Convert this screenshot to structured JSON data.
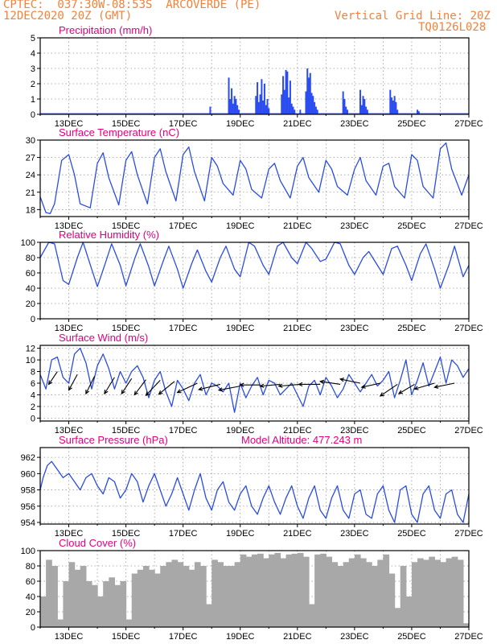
{
  "header": {
    "line1": "CPTEC:  037:30W-08:53S  ARCOVERDE (PE)",
    "line2": "12DEC2020 20Z (GMT)",
    "grid_note": "Vertical Grid Line: 20Z",
    "code": "TQ0126L028"
  },
  "colors": {
    "header": "#f0823c",
    "panel_title": "#e0007e",
    "series_line": "#2a4ce0",
    "bar_blue": "#2a4cf0",
    "cloud_gray": "#a8a8a8",
    "arrow": "#000000",
    "grid": "#999999"
  },
  "x_axis": {
    "range": [
      0,
      15
    ],
    "ticks": [
      {
        "x": 1,
        "label": "13DEC"
      },
      {
        "x": 3,
        "label": "15DEC"
      },
      {
        "x": 5,
        "label": "17DEC"
      },
      {
        "x": 7,
        "label": "19DEC"
      },
      {
        "x": 9,
        "label": "21DEC"
      },
      {
        "x": 11,
        "label": "23DEC"
      },
      {
        "x": 13,
        "label": "25DEC"
      },
      {
        "x": 15,
        "label": "27DEC"
      }
    ]
  },
  "chart_data": [
    {
      "type": "bar",
      "title": "Precipitation (mm/h)",
      "ylim": [
        0,
        5
      ],
      "yticks": [
        0,
        1,
        2,
        3,
        4,
        5
      ],
      "grid": true,
      "x": [
        5.95,
        6.6,
        6.65,
        6.7,
        6.75,
        6.8,
        6.85,
        6.9,
        6.95,
        7.55,
        7.6,
        7.65,
        7.7,
        7.75,
        7.8,
        7.85,
        7.9,
        7.95,
        8.0,
        8.45,
        8.5,
        8.55,
        8.6,
        8.65,
        8.7,
        8.75,
        8.8,
        8.85,
        8.9,
        9.1,
        9.3,
        9.35,
        9.4,
        9.45,
        9.5,
        9.55,
        9.6,
        9.65,
        9.7,
        10.6,
        10.65,
        10.7,
        10.75,
        11.2,
        11.25,
        11.3,
        11.35,
        11.4,
        11.45,
        12.25,
        12.3,
        12.35,
        12.4,
        12.45,
        12.5,
        13.2,
        13.25
      ],
      "values": [
        0.5,
        2.4,
        1.0,
        1.7,
        0.7,
        1.2,
        1.0,
        0.6,
        0.3,
        1.2,
        2.1,
        0.8,
        1.3,
        2.3,
        0.9,
        2.0,
        0.6,
        1.0,
        0.4,
        1.3,
        2.5,
        1.6,
        2.9,
        2.8,
        1.1,
        2.2,
        0.7,
        0.5,
        0.3,
        0.3,
        1.5,
        3.0,
        2.4,
        2.7,
        1.4,
        1.2,
        0.8,
        0.5,
        0.3,
        1.5,
        1.0,
        0.5,
        0.3,
        1.6,
        0.6,
        1.2,
        1.0,
        0.5,
        0.3,
        1.6,
        1.1,
        0.9,
        1.2,
        0.8,
        0.3,
        0.3,
        0.2
      ]
    },
    {
      "type": "line",
      "title": "Surface Temperature (nC)",
      "ylim": [
        16.8,
        30
      ],
      "yticks": [
        18,
        21,
        24,
        27,
        30
      ],
      "grid": true,
      "x": [
        0,
        0.2,
        0.35,
        0.5,
        0.75,
        1.0,
        1.2,
        1.4,
        1.75,
        2.0,
        2.2,
        2.4,
        2.75,
        3.0,
        3.2,
        3.4,
        3.75,
        4.0,
        4.2,
        4.4,
        4.75,
        5.0,
        5.2,
        5.4,
        5.75,
        6.0,
        6.2,
        6.4,
        6.75,
        7.0,
        7.2,
        7.4,
        7.75,
        8.0,
        8.2,
        8.4,
        8.75,
        9.0,
        9.2,
        9.4,
        9.75,
        10.0,
        10.2,
        10.4,
        10.75,
        11.0,
        11.2,
        11.4,
        11.75,
        12.0,
        12.2,
        12.4,
        12.75,
        13.0,
        13.2,
        13.4,
        13.75,
        14.0,
        14.2,
        14.4,
        14.75,
        15.0
      ],
      "values": [
        20.2,
        17.5,
        17.3,
        19.0,
        26.5,
        27.5,
        24.0,
        19.0,
        18.3,
        26.0,
        27.8,
        23.5,
        18.8,
        26.5,
        28.0,
        24.0,
        19.0,
        27.0,
        28.5,
        24.5,
        19.5,
        27.5,
        28.8,
        24.5,
        19.5,
        27.0,
        25.5,
        22.5,
        20.5,
        26.5,
        25.0,
        21.5,
        20.0,
        25.0,
        26.0,
        23.0,
        20.0,
        25.5,
        27.0,
        23.5,
        21.0,
        26.5,
        25.0,
        22.0,
        20.5,
        25.0,
        27.0,
        23.0,
        20.5,
        25.5,
        26.0,
        22.0,
        20.0,
        27.5,
        26.5,
        22.0,
        20.0,
        28.5,
        29.5,
        25.0,
        20.5,
        24.0
      ]
    },
    {
      "type": "line",
      "title": "Relative Humidity (%)",
      "ylim": [
        0,
        100
      ],
      "yticks": [
        0,
        20,
        40,
        60,
        80,
        100
      ],
      "grid": true,
      "x": [
        0,
        0.3,
        0.5,
        0.8,
        1.0,
        1.3,
        1.5,
        1.8,
        2.0,
        2.3,
        2.5,
        2.8,
        3.0,
        3.3,
        3.5,
        3.8,
        4.0,
        4.3,
        4.5,
        4.8,
        5.0,
        5.3,
        5.5,
        5.8,
        6.0,
        6.3,
        6.5,
        6.8,
        7.0,
        7.3,
        7.5,
        7.8,
        8.0,
        8.3,
        8.5,
        8.8,
        9.0,
        9.3,
        9.5,
        9.8,
        10.0,
        10.3,
        10.5,
        10.8,
        11.0,
        11.3,
        11.5,
        11.8,
        12.0,
        12.3,
        12.5,
        12.8,
        13.0,
        13.3,
        13.5,
        13.8,
        14.0,
        14.3,
        14.5,
        14.8,
        15.0
      ],
      "values": [
        80,
        100,
        98,
        50,
        45,
        80,
        100,
        65,
        42,
        75,
        98,
        70,
        43,
        78,
        98,
        68,
        43,
        75,
        95,
        65,
        40,
        72,
        90,
        62,
        48,
        80,
        95,
        65,
        55,
        100,
        95,
        70,
        58,
        95,
        100,
        80,
        72,
        100,
        92,
        75,
        78,
        100,
        98,
        70,
        58,
        80,
        88,
        70,
        58,
        92,
        95,
        70,
        50,
        85,
        98,
        65,
        40,
        70,
        95,
        55,
        70
      ]
    },
    {
      "type": "line",
      "title": "Surface Wind (m/s)",
      "ylim": [
        -0.5,
        12.5
      ],
      "yticks": [
        0,
        2,
        4,
        6,
        8,
        10,
        12
      ],
      "grid": true,
      "x": [
        0,
        0.2,
        0.4,
        0.6,
        0.8,
        1.0,
        1.2,
        1.4,
        1.6,
        1.8,
        2.0,
        2.2,
        2.4,
        2.6,
        2.8,
        3.0,
        3.2,
        3.4,
        3.6,
        3.8,
        4.0,
        4.2,
        4.4,
        4.6,
        4.8,
        5.0,
        5.2,
        5.4,
        5.6,
        5.8,
        6.0,
        6.2,
        6.4,
        6.6,
        6.8,
        7.0,
        7.2,
        7.4,
        7.6,
        7.8,
        8.0,
        8.2,
        8.4,
        8.6,
        8.8,
        9.0,
        9.2,
        9.4,
        9.6,
        9.8,
        10.0,
        10.2,
        10.4,
        10.6,
        10.8,
        11.0,
        11.2,
        11.4,
        11.6,
        11.8,
        12.0,
        12.2,
        12.4,
        12.6,
        12.8,
        13.0,
        13.2,
        13.4,
        13.6,
        13.8,
        14.0,
        14.2,
        14.4,
        14.6,
        14.8,
        15.0
      ],
      "values": [
        7.5,
        5.0,
        10.0,
        10.5,
        7.0,
        6.0,
        11.0,
        12.0,
        9.5,
        5.0,
        9.0,
        11.0,
        8.5,
        5.0,
        8.0,
        6.0,
        8.0,
        9.0,
        7.0,
        3.5,
        6.5,
        8.0,
        4.5,
        2.0,
        6.5,
        5.0,
        3.0,
        6.0,
        7.5,
        4.0,
        6.0,
        5.5,
        4.5,
        6.0,
        1.0,
        6.0,
        3.5,
        5.5,
        7.0,
        4.0,
        6.5,
        6.0,
        4.0,
        5.0,
        6.0,
        4.0,
        2.0,
        5.5,
        6.5,
        4.0,
        7.0,
        5.5,
        3.5,
        5.0,
        7.5,
        6.0,
        4.5,
        6.0,
        7.5,
        5.5,
        6.5,
        8.0,
        3.5,
        6.5,
        10.0,
        4.0,
        6.5,
        9.5,
        5.5,
        8.0,
        10.5,
        6.0,
        10.0,
        9.0,
        7.0,
        8.5
      ],
      "vectors": [
        {
          "x": 0.6,
          "y": 8.0,
          "u": -0.3,
          "v": -0.22
        },
        {
          "x": 1.3,
          "y": 7.5,
          "u": -0.3,
          "v": -0.27
        },
        {
          "x": 1.9,
          "y": 7.2,
          "u": -0.3,
          "v": -0.3
        },
        {
          "x": 2.6,
          "y": 7.0,
          "u": -0.35,
          "v": -0.28
        },
        {
          "x": 3.2,
          "y": 6.8,
          "u": -0.35,
          "v": -0.26
        },
        {
          "x": 3.7,
          "y": 6.6,
          "u": -0.4,
          "v": -0.26
        },
        {
          "x": 4.2,
          "y": 6.5,
          "u": -0.5,
          "v": -0.26
        },
        {
          "x": 4.7,
          "y": 6.3,
          "u": -0.55,
          "v": -0.22
        },
        {
          "x": 5.5,
          "y": 6.0,
          "u": -0.7,
          "v": -0.16
        },
        {
          "x": 6.3,
          "y": 5.8,
          "u": -0.75,
          "v": -0.09
        },
        {
          "x": 7.0,
          "y": 5.5,
          "u": -0.75,
          "v": -0.07
        },
        {
          "x": 7.7,
          "y": 5.7,
          "u": -0.7,
          "v": 0.0
        },
        {
          "x": 8.4,
          "y": 5.8,
          "u": -0.7,
          "v": -0.03
        },
        {
          "x": 9.1,
          "y": 5.8,
          "u": -0.75,
          "v": -0.03
        },
        {
          "x": 9.8,
          "y": 5.8,
          "u": -0.75,
          "v": 0.0
        },
        {
          "x": 10.5,
          "y": 5.8,
          "u": -0.7,
          "v": 0.05
        },
        {
          "x": 11.2,
          "y": 6.0,
          "u": -0.7,
          "v": 0.07
        },
        {
          "x": 11.9,
          "y": 6.0,
          "u": -0.65,
          "v": -0.07
        },
        {
          "x": 12.5,
          "y": 5.8,
          "u": -0.6,
          "v": -0.2
        },
        {
          "x": 13.1,
          "y": 5.8,
          "u": -0.55,
          "v": -0.16
        },
        {
          "x": 13.8,
          "y": 6.0,
          "u": -0.7,
          "v": -0.1
        },
        {
          "x": 14.5,
          "y": 6.0,
          "u": -0.7,
          "v": -0.07
        }
      ]
    },
    {
      "type": "line",
      "title": "Surface Pressure (hPa)",
      "annotation": "Model Altitude: 477.243 m",
      "ylim": [
        953.8,
        963.2
      ],
      "yticks": [
        954,
        956,
        958,
        960,
        962
      ],
      "grid": true,
      "x": [
        0,
        0.1,
        0.25,
        0.4,
        0.6,
        0.8,
        1.0,
        1.2,
        1.4,
        1.6,
        1.8,
        2.0,
        2.2,
        2.4,
        2.6,
        2.8,
        3.0,
        3.2,
        3.4,
        3.6,
        3.8,
        4.0,
        4.2,
        4.4,
        4.6,
        4.8,
        5.0,
        5.2,
        5.4,
        5.6,
        5.8,
        6.0,
        6.2,
        6.4,
        6.6,
        6.8,
        7.0,
        7.2,
        7.4,
        7.6,
        7.8,
        8.0,
        8.2,
        8.4,
        8.6,
        8.8,
        9.0,
        9.2,
        9.4,
        9.6,
        9.8,
        10.0,
        10.2,
        10.4,
        10.6,
        10.8,
        11.0,
        11.2,
        11.4,
        11.6,
        11.8,
        12.0,
        12.2,
        12.4,
        12.6,
        12.8,
        13.0,
        13.2,
        13.4,
        13.6,
        13.8,
        14.0,
        14.2,
        14.4,
        14.6,
        14.8,
        15.0
      ],
      "values": [
        958.0,
        959.5,
        961.0,
        961.5,
        960.5,
        959.5,
        960.0,
        959.0,
        958.0,
        959.5,
        960.0,
        958.5,
        957.5,
        959.5,
        959.0,
        957.0,
        958.0,
        960.0,
        959.0,
        956.5,
        958.5,
        960.0,
        958.0,
        956.0,
        957.5,
        959.5,
        957.5,
        955.5,
        958.0,
        960.0,
        957.0,
        955.5,
        958.0,
        959.0,
        956.5,
        955.5,
        957.5,
        958.5,
        956.0,
        955.0,
        957.0,
        958.5,
        956.5,
        955.0,
        957.0,
        958.5,
        956.0,
        954.5,
        957.0,
        958.5,
        955.5,
        954.5,
        957.0,
        958.5,
        955.5,
        954.5,
        957.5,
        958.0,
        955.0,
        954.5,
        957.5,
        958.5,
        955.5,
        954.0,
        958.0,
        958.5,
        955.0,
        954.0,
        957.5,
        958.5,
        955.5,
        954.5,
        957.5,
        958.0,
        955.0,
        954.0,
        957.5
      ]
    },
    {
      "type": "area",
      "title": "Cloud Cover (%)",
      "ylim": [
        0,
        100
      ],
      "yticks": [
        0,
        20,
        40,
        60,
        80,
        100
      ],
      "grid": true,
      "x": [
        0,
        0.2,
        0.4,
        0.6,
        0.8,
        1.0,
        1.2,
        1.4,
        1.6,
        1.8,
        2.0,
        2.2,
        2.4,
        2.6,
        2.8,
        3.0,
        3.2,
        3.4,
        3.6,
        3.8,
        4.0,
        4.2,
        4.4,
        4.6,
        4.8,
        5.0,
        5.2,
        5.4,
        5.6,
        5.8,
        6.0,
        6.2,
        6.4,
        6.6,
        6.8,
        7.0,
        7.2,
        7.4,
        7.6,
        7.8,
        8.0,
        8.2,
        8.4,
        8.6,
        8.8,
        9.0,
        9.2,
        9.4,
        9.6,
        9.8,
        10.0,
        10.2,
        10.4,
        10.6,
        10.8,
        11.0,
        11.2,
        11.4,
        11.6,
        11.8,
        12.0,
        12.2,
        12.4,
        12.6,
        12.8,
        13.0,
        13.2,
        13.4,
        13.6,
        13.8,
        14.0,
        14.2,
        14.4,
        14.6,
        14.8,
        15.0
      ],
      "values": [
        40,
        88,
        80,
        10,
        60,
        85,
        75,
        80,
        60,
        55,
        40,
        60,
        65,
        55,
        60,
        10,
        70,
        75,
        80,
        75,
        70,
        80,
        85,
        88,
        85,
        80,
        75,
        85,
        80,
        30,
        88,
        85,
        80,
        80,
        85,
        95,
        92,
        95,
        96,
        90,
        95,
        97,
        90,
        95,
        96,
        97,
        92,
        30,
        95,
        96,
        92,
        85,
        80,
        85,
        90,
        95,
        90,
        85,
        80,
        88,
        95,
        70,
        25,
        80,
        40,
        85,
        90,
        88,
        92,
        88,
        85,
        90,
        92,
        88,
        5,
        5
      ]
    }
  ]
}
